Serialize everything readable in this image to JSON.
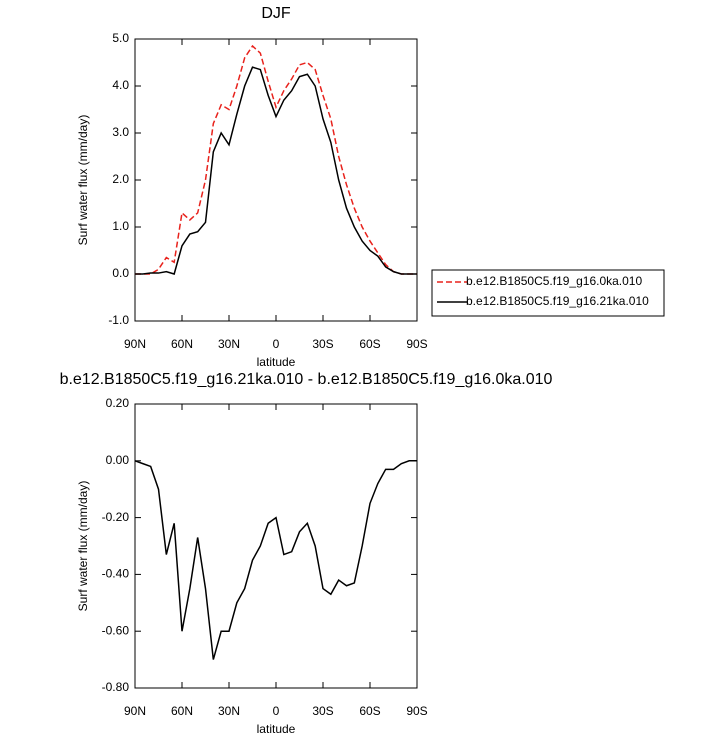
{
  "chart_data": [
    {
      "type": "line",
      "title": "DJF",
      "xlabel": "latitude",
      "ylabel": "Surf water flux (mm/day)",
      "x": [
        90,
        85,
        80,
        75,
        70,
        65,
        60,
        55,
        50,
        45,
        40,
        35,
        30,
        25,
        20,
        15,
        10,
        5,
        0,
        -5,
        -10,
        -15,
        -20,
        -25,
        -30,
        -35,
        -40,
        -45,
        -50,
        -55,
        -60,
        -65,
        -70,
        -75,
        -80,
        -85,
        -90
      ],
      "xlim": [
        90,
        -90
      ],
      "xticks": [
        {
          "value": 90,
          "label": "90N"
        },
        {
          "value": 60,
          "label": "60N"
        },
        {
          "value": 30,
          "label": "30N"
        },
        0,
        {
          "value": -30,
          "label": "30S"
        },
        {
          "value": -60,
          "label": "60S"
        },
        {
          "value": -90,
          "label": "90S"
        }
      ],
      "ylim": [
        -1,
        5
      ],
      "yticks": [
        {
          "value": -1,
          "label": "-1.0"
        },
        {
          "value": 0,
          "label": "0.0"
        },
        {
          "value": 1,
          "label": "1.0"
        },
        {
          "value": 2,
          "label": "2.0"
        },
        {
          "value": 3,
          "label": "3.0"
        },
        {
          "value": 4,
          "label": "4.0"
        },
        {
          "value": 5,
          "label": "5.0"
        }
      ],
      "legend": "outside-right",
      "series": [
        {
          "name": "b.e12.B1850C5.f19_g16.0ka.010",
          "color": "#e8221c",
          "dashed": true,
          "values": [
            0,
            0,
            0,
            0.1,
            0.35,
            0.25,
            1.3,
            1.15,
            1.3,
            2.0,
            3.2,
            3.6,
            3.5,
            4.0,
            4.6,
            4.85,
            4.7,
            4.1,
            3.55,
            3.9,
            4.15,
            4.45,
            4.5,
            4.35,
            3.8,
            3.3,
            2.5,
            1.9,
            1.4,
            1.0,
            0.7,
            0.45,
            0.2,
            0.05,
            0,
            0,
            0
          ]
        },
        {
          "name": "b.e12.B1850C5.f19_g16.21ka.010",
          "color": "#000000",
          "dashed": false,
          "values": [
            0,
            0,
            0.02,
            0.02,
            0.05,
            0,
            0.6,
            0.85,
            0.9,
            1.1,
            2.6,
            3.0,
            2.75,
            3.4,
            4.0,
            4.4,
            4.35,
            3.8,
            3.35,
            3.7,
            3.9,
            4.2,
            4.25,
            4.0,
            3.3,
            2.8,
            2.0,
            1.4,
            1.0,
            0.7,
            0.5,
            0.38,
            0.15,
            0.05,
            0,
            0,
            0
          ]
        }
      ]
    },
    {
      "type": "line",
      "title": "b.e12.B1850C5.f19_g16.21ka.010 - b.e12.B1850C5.f19_g16.0ka.010",
      "xlabel": "latitude",
      "ylabel": "Surf water flux (mm/day)",
      "x": [
        90,
        85,
        80,
        75,
        70,
        65,
        60,
        55,
        50,
        45,
        40,
        35,
        30,
        25,
        20,
        15,
        10,
        5,
        0,
        -5,
        -10,
        -15,
        -20,
        -25,
        -30,
        -35,
        -40,
        -45,
        -50,
        -55,
        -60,
        -65,
        -70,
        -75,
        -80,
        -85,
        -90
      ],
      "xlim": [
        90,
        -90
      ],
      "xticks": [
        {
          "value": 90,
          "label": "90N"
        },
        {
          "value": 60,
          "label": "60N"
        },
        {
          "value": 30,
          "label": "30N"
        },
        0,
        {
          "value": -30,
          "label": "30S"
        },
        {
          "value": -60,
          "label": "60S"
        },
        {
          "value": -90,
          "label": "90S"
        }
      ],
      "ylim": [
        -0.8,
        0.2
      ],
      "yticks": [
        {
          "value": -0.8,
          "label": "-0.80"
        },
        {
          "value": -0.6,
          "label": "-0.60"
        },
        {
          "value": -0.4,
          "label": "-0.40"
        },
        {
          "value": -0.2,
          "label": "-0.20"
        },
        {
          "value": 0,
          "label": "0.00"
        },
        {
          "value": 0.2,
          "label": "0.20"
        }
      ],
      "series": [
        {
          "color": "#000000",
          "dashed": false,
          "values": [
            0,
            -0.01,
            -0.02,
            -0.1,
            -0.33,
            -0.22,
            -0.6,
            -0.45,
            -0.27,
            -0.45,
            -0.7,
            -0.6,
            -0.6,
            -0.5,
            -0.45,
            -0.35,
            -0.3,
            -0.22,
            -0.2,
            -0.33,
            -0.32,
            -0.25,
            -0.22,
            -0.3,
            -0.45,
            -0.47,
            -0.42,
            -0.44,
            -0.43,
            -0.3,
            -0.15,
            -0.08,
            -0.03,
            -0.03,
            -0.01,
            0,
            0
          ]
        }
      ]
    }
  ]
}
